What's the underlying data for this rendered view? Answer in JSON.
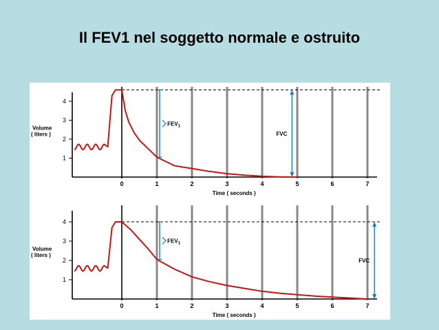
{
  "slide": {
    "title": "Il FEV1 nel soggetto normale e ostruito"
  },
  "colors": {
    "background": "#b7dde3",
    "curve": "#cc1111",
    "annotation": "#2277bb",
    "axis": "#000000",
    "gridline": "#888888"
  },
  "chart_data": [
    {
      "type": "line",
      "subject": "normale",
      "xlabel": "Time ( seconds )",
      "ylabel_line1": "Volume",
      "ylabel_line2": "( liters )",
      "x_ticks": [
        "0",
        "1",
        "2",
        "3",
        "4",
        "5",
        "6",
        "7"
      ],
      "y_ticks": [
        "1",
        "2",
        "3",
        "4"
      ],
      "xlim": [
        -1.4,
        7.4
      ],
      "ylim": [
        0,
        4.75
      ],
      "series": [
        {
          "values": [
            [
              0,
              4.6
            ],
            [
              0.1,
              3.5
            ],
            [
              0.2,
              2.9
            ],
            [
              0.35,
              2.35
            ],
            [
              0.5,
              1.95
            ],
            [
              0.75,
              1.5
            ],
            [
              1,
              1.05
            ],
            [
              1.5,
              0.6
            ],
            [
              2,
              0.45
            ],
            [
              2.5,
              0.3
            ],
            [
              3,
              0.18
            ],
            [
              3.5,
              0.1
            ],
            [
              4,
              0.04
            ],
            [
              4.5,
              0.01
            ],
            [
              5,
              0
            ]
          ]
        }
      ],
      "fev1_label": "FEV",
      "fev1_sub": "1",
      "fvc_label": "FVC",
      "fev1_range": [
        1.05,
        4.6
      ],
      "fvc_range": [
        0,
        4.6
      ],
      "fvc_time": 4.85
    },
    {
      "type": "line",
      "subject": "ostruito",
      "xlabel": "Time ( seconds )",
      "ylabel_line1": "Volume",
      "ylabel_line2": "( liters )",
      "x_ticks": [
        "0",
        "1",
        "2",
        "3",
        "4",
        "5",
        "6",
        "7"
      ],
      "y_ticks": [
        "1",
        "2",
        "3",
        "4"
      ],
      "xlim": [
        -1.4,
        7.4
      ],
      "ylim": [
        0,
        4.3
      ],
      "series": [
        {
          "values": [
            [
              0,
              4.0
            ],
            [
              0.25,
              3.6
            ],
            [
              0.5,
              3.1
            ],
            [
              0.75,
              2.6
            ],
            [
              1,
              2.05
            ],
            [
              1.5,
              1.55
            ],
            [
              2,
              1.15
            ],
            [
              2.5,
              0.9
            ],
            [
              3,
              0.7
            ],
            [
              3.5,
              0.55
            ],
            [
              4,
              0.4
            ],
            [
              4.5,
              0.3
            ],
            [
              5,
              0.22
            ],
            [
              5.5,
              0.15
            ],
            [
              6,
              0.1
            ],
            [
              6.5,
              0.05
            ],
            [
              7,
              0
            ]
          ]
        }
      ],
      "fev1_label": "FEV",
      "fev1_sub": "1",
      "fvc_label": "FVC",
      "fev1_range": [
        2.05,
        4.0
      ],
      "fvc_range": [
        0,
        4.0
      ],
      "fvc_time": 7.2
    }
  ]
}
